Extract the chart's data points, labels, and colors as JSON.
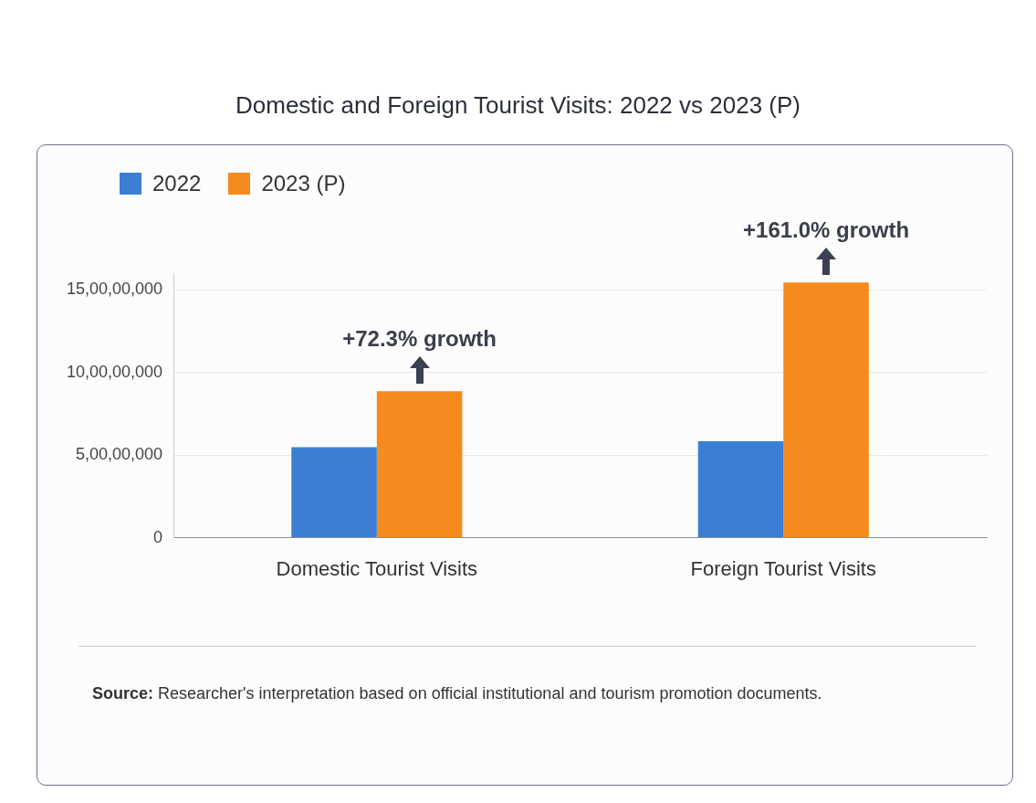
{
  "chart_data": {
    "type": "bar",
    "title": "Domestic and Foreign Tourist Visits: 2022 vs 2023 (P)",
    "categories": [
      "Domestic Tourist Visits",
      "Foreign Tourist Visits"
    ],
    "series": [
      {
        "name": "2022",
        "color": "#3a7fd4",
        "values": [
          54800000,
          58300000
        ]
      },
      {
        "name": "2023 (P)",
        "color": "#f58a1f",
        "values": [
          88600000,
          154400000
        ]
      }
    ],
    "ylim": [
      0,
      160000000
    ],
    "yticks": [
      {
        "value": 0,
        "label": "0"
      },
      {
        "value": 50000000,
        "label": "5,00,00,000"
      },
      {
        "value": 100000000,
        "label": "10,00,00,000"
      },
      {
        "value": 150000000,
        "label": "15,00,00,000"
      }
    ],
    "grid": "y",
    "legend": "top left",
    "annotations": [
      {
        "text": "+72.3% growth",
        "x": "Domestic Tourist Visits",
        "y": 88600000
      },
      {
        "text": "+161.0% growth",
        "x": "Foreign Tourist Visits",
        "y": 154400000
      },
      "Source: Researcher's interpretation based on official institutional and tourism promotion documents."
    ]
  }
}
